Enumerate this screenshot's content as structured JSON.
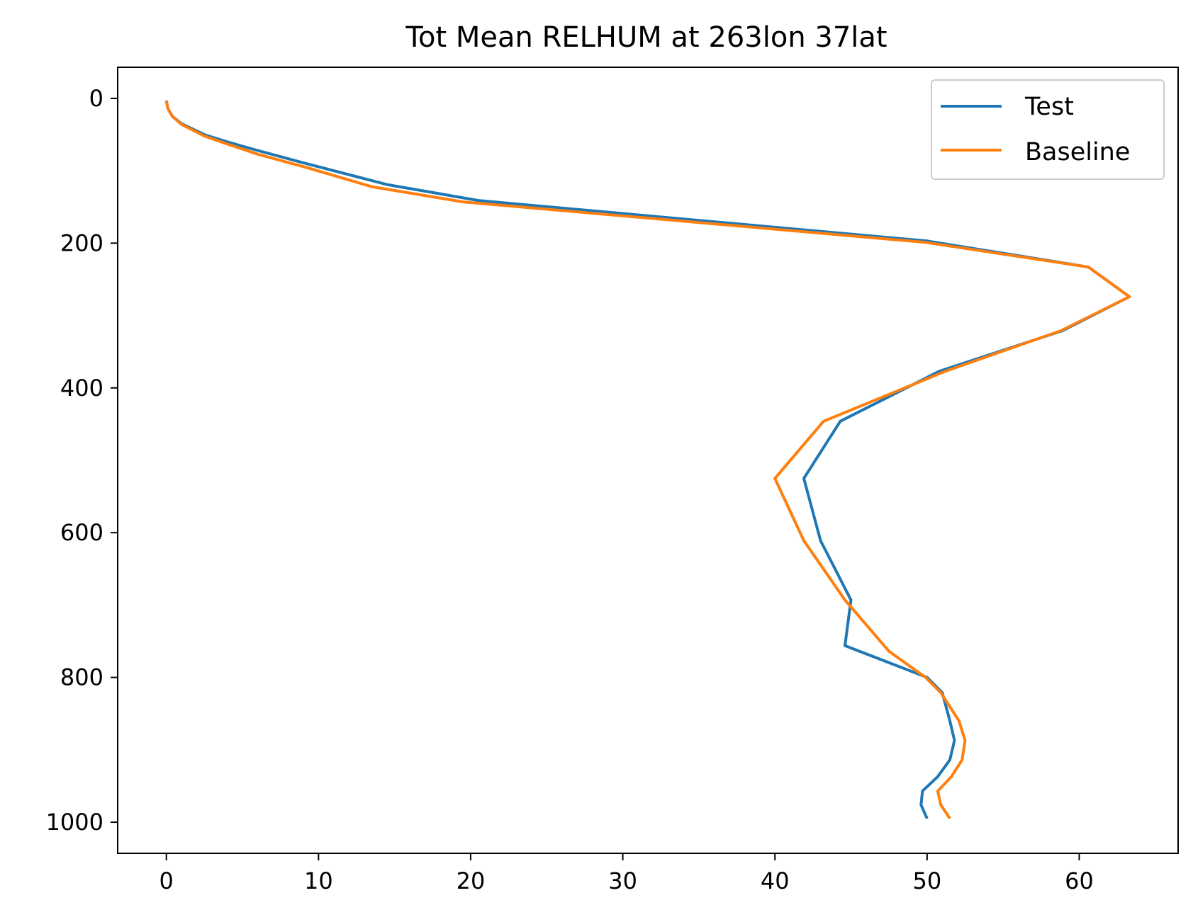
{
  "chart_data": {
    "type": "line",
    "title": "Tot Mean RELHUM at 263lon 37lat",
    "xlabel": "",
    "ylabel": "",
    "xlim": [
      -3.2,
      66.5
    ],
    "ylim": [
      1043,
      -43
    ],
    "y_inverted": true,
    "xticks": [
      0,
      10,
      20,
      30,
      40,
      50,
      60
    ],
    "yticks": [
      0,
      200,
      400,
      600,
      800,
      1000
    ],
    "grid": false,
    "legend_position": "top-right",
    "series": [
      {
        "name": "Test",
        "color": "#1f77b4",
        "x": [
          50.0,
          49.6,
          49.7,
          50.7,
          51.5,
          51.8,
          51.5,
          51.0,
          50.0,
          44.6,
          45.0,
          43.0,
          41.9,
          44.3,
          50.8,
          58.9,
          63.3,
          60.6,
          50.0,
          20.5,
          14.5,
          9.0,
          6.0,
          4.0,
          2.5,
          1.0,
          0.4,
          0.1,
          0.0
        ],
        "y": [
          995,
          976,
          957,
          937,
          914,
          887,
          860,
          821,
          800,
          756,
          693,
          611,
          525,
          446,
          377,
          321,
          274,
          233,
          197,
          141,
          119,
          89,
          72,
          60,
          50,
          35,
          25,
          14,
          3
        ]
      },
      {
        "name": "Baseline",
        "color": "#ff7f0e",
        "x": [
          51.5,
          50.9,
          50.7,
          51.6,
          52.3,
          52.5,
          52.1,
          50.9,
          49.9,
          47.5,
          44.6,
          41.9,
          40.0,
          43.2,
          51.2,
          58.8,
          63.3,
          60.6,
          49.9,
          19.5,
          13.5,
          9.3,
          6.0,
          4.0,
          2.5,
          1.0,
          0.4,
          0.1,
          0.0
        ],
        "y": [
          995,
          976,
          957,
          937,
          914,
          887,
          860,
          821,
          800,
          764,
          693,
          611,
          525,
          446,
          377,
          321,
          274,
          233,
          199,
          143,
          122,
          96,
          77,
          63,
          52,
          36,
          25,
          14,
          3
        ]
      }
    ]
  }
}
